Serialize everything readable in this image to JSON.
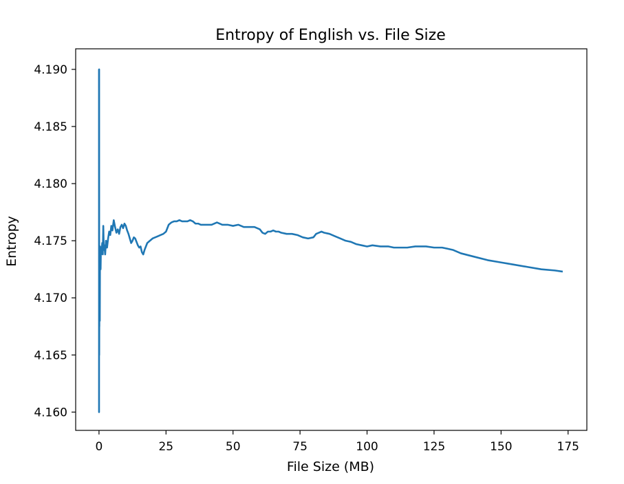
{
  "chart_data": {
    "type": "line",
    "title": "Entropy of English vs. File Size",
    "xlabel": "File Size (MB)",
    "ylabel": "Entropy",
    "xlim": [
      -8.7,
      182
    ],
    "ylim": [
      4.1584,
      4.1918
    ],
    "xticks": [
      0,
      25,
      50,
      75,
      100,
      125,
      150,
      175
    ],
    "xtick_labels": [
      "0",
      "25",
      "50",
      "75",
      "100",
      "125",
      "150",
      "175"
    ],
    "yticks": [
      4.16,
      4.165,
      4.17,
      4.175,
      4.18,
      4.185,
      4.19
    ],
    "ytick_labels": [
      "4.160",
      "4.165",
      "4.170",
      "4.175",
      "4.180",
      "4.185",
      "4.190"
    ],
    "grid": false,
    "series": [
      {
        "color": "#1f77b4",
        "x": [
          0.0,
          0.02,
          0.05,
          0.08,
          0.1,
          0.13,
          0.16,
          0.2,
          0.25,
          0.3,
          0.35,
          0.4,
          0.5,
          0.6,
          0.7,
          0.8,
          1.0,
          1.2,
          1.4,
          1.6,
          1.8,
          2.0,
          2.3,
          2.6,
          3.0,
          3.4,
          3.8,
          4.2,
          4.6,
          5.0,
          5.5,
          6.0,
          6.5,
          7.0,
          7.5,
          8.0,
          8.5,
          9.0,
          9.5,
          10.0,
          10.5,
          11.0,
          11.5,
          12.0,
          12.5,
          13.0,
          13.5,
          14.0,
          14.5,
          15.0,
          15.5,
          16.0,
          16.5,
          17.0,
          17.5,
          18.0,
          19.0,
          20.0,
          21.0,
          22.0,
          23.0,
          24.0,
          25.0,
          26.0,
          27.0,
          28.0,
          29.0,
          30.0,
          31.0,
          32.0,
          33.0,
          34.0,
          35.0,
          36.0,
          37.0,
          38.0,
          40.0,
          42.0,
          44.0,
          46.0,
          48.0,
          50.0,
          52.0,
          54.0,
          56.0,
          58.0,
          60.0,
          61.0,
          62.0,
          63.0,
          64.0,
          65.0,
          66.0,
          67.0,
          68.0,
          70.0,
          72.0,
          74.0,
          76.0,
          78.0,
          80.0,
          81.0,
          82.0,
          83.0,
          84.0,
          86.0,
          88.0,
          90.0,
          92.0,
          94.0,
          96.0,
          98.0,
          100.0,
          102.0,
          105.0,
          108.0,
          110.0,
          112.0,
          115.0,
          118.0,
          120.0,
          122.0,
          125.0,
          128.0,
          130.0,
          132.0,
          135.0,
          140.0,
          145.0,
          150.0,
          155.0,
          160.0,
          165.0,
          170.0,
          173.0
        ],
        "y": [
          4.19,
          4.16,
          4.19,
          4.165,
          4.168,
          4.1675,
          4.172,
          4.1695,
          4.1735,
          4.168,
          4.172,
          4.1745,
          4.1735,
          4.1725,
          4.174,
          4.1738,
          4.1742,
          4.1748,
          4.1738,
          4.1763,
          4.1742,
          4.1746,
          4.1738,
          4.175,
          4.1744,
          4.1752,
          4.1758,
          4.1755,
          4.1763,
          4.1759,
          4.1768,
          4.1762,
          4.1757,
          4.176,
          4.1756,
          4.1762,
          4.1764,
          4.1761,
          4.1765,
          4.1763,
          4.1759,
          4.1756,
          4.1752,
          4.1748,
          4.175,
          4.1753,
          4.1752,
          4.1749,
          4.1746,
          4.1744,
          4.1745,
          4.174,
          4.1738,
          4.1742,
          4.1745,
          4.1748,
          4.175,
          4.1752,
          4.1753,
          4.1754,
          4.1755,
          4.1756,
          4.1758,
          4.1764,
          4.1766,
          4.1767,
          4.1767,
          4.1768,
          4.1767,
          4.1767,
          4.1767,
          4.1768,
          4.1767,
          4.1765,
          4.1765,
          4.1764,
          4.1764,
          4.1764,
          4.1766,
          4.1764,
          4.1764,
          4.1763,
          4.1764,
          4.1762,
          4.1762,
          4.1762,
          4.176,
          4.1757,
          4.1756,
          4.1758,
          4.1758,
          4.1759,
          4.1758,
          4.1758,
          4.1757,
          4.1756,
          4.1756,
          4.1755,
          4.1753,
          4.1752,
          4.1753,
          4.1756,
          4.1757,
          4.1758,
          4.1757,
          4.1756,
          4.1754,
          4.1752,
          4.175,
          4.1749,
          4.1747,
          4.1746,
          4.1745,
          4.1746,
          4.1745,
          4.1745,
          4.1744,
          4.1744,
          4.1744,
          4.1745,
          4.1745,
          4.1745,
          4.1744,
          4.1744,
          4.1743,
          4.1742,
          4.1739,
          4.1736,
          4.1733,
          4.1731,
          4.1729,
          4.1727,
          4.1725,
          4.1724,
          4.1723
        ]
      }
    ]
  }
}
